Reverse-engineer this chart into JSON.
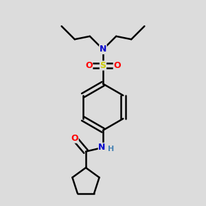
{
  "background_color": "#dcdcdc",
  "atom_colors": {
    "C": "#000000",
    "N": "#0000cc",
    "O": "#ff0000",
    "S": "#cccc00",
    "H": "#4682b4"
  },
  "bond_color": "#000000",
  "bond_width": 1.8,
  "fig_size": [
    3.0,
    3.0
  ],
  "dpi": 100
}
